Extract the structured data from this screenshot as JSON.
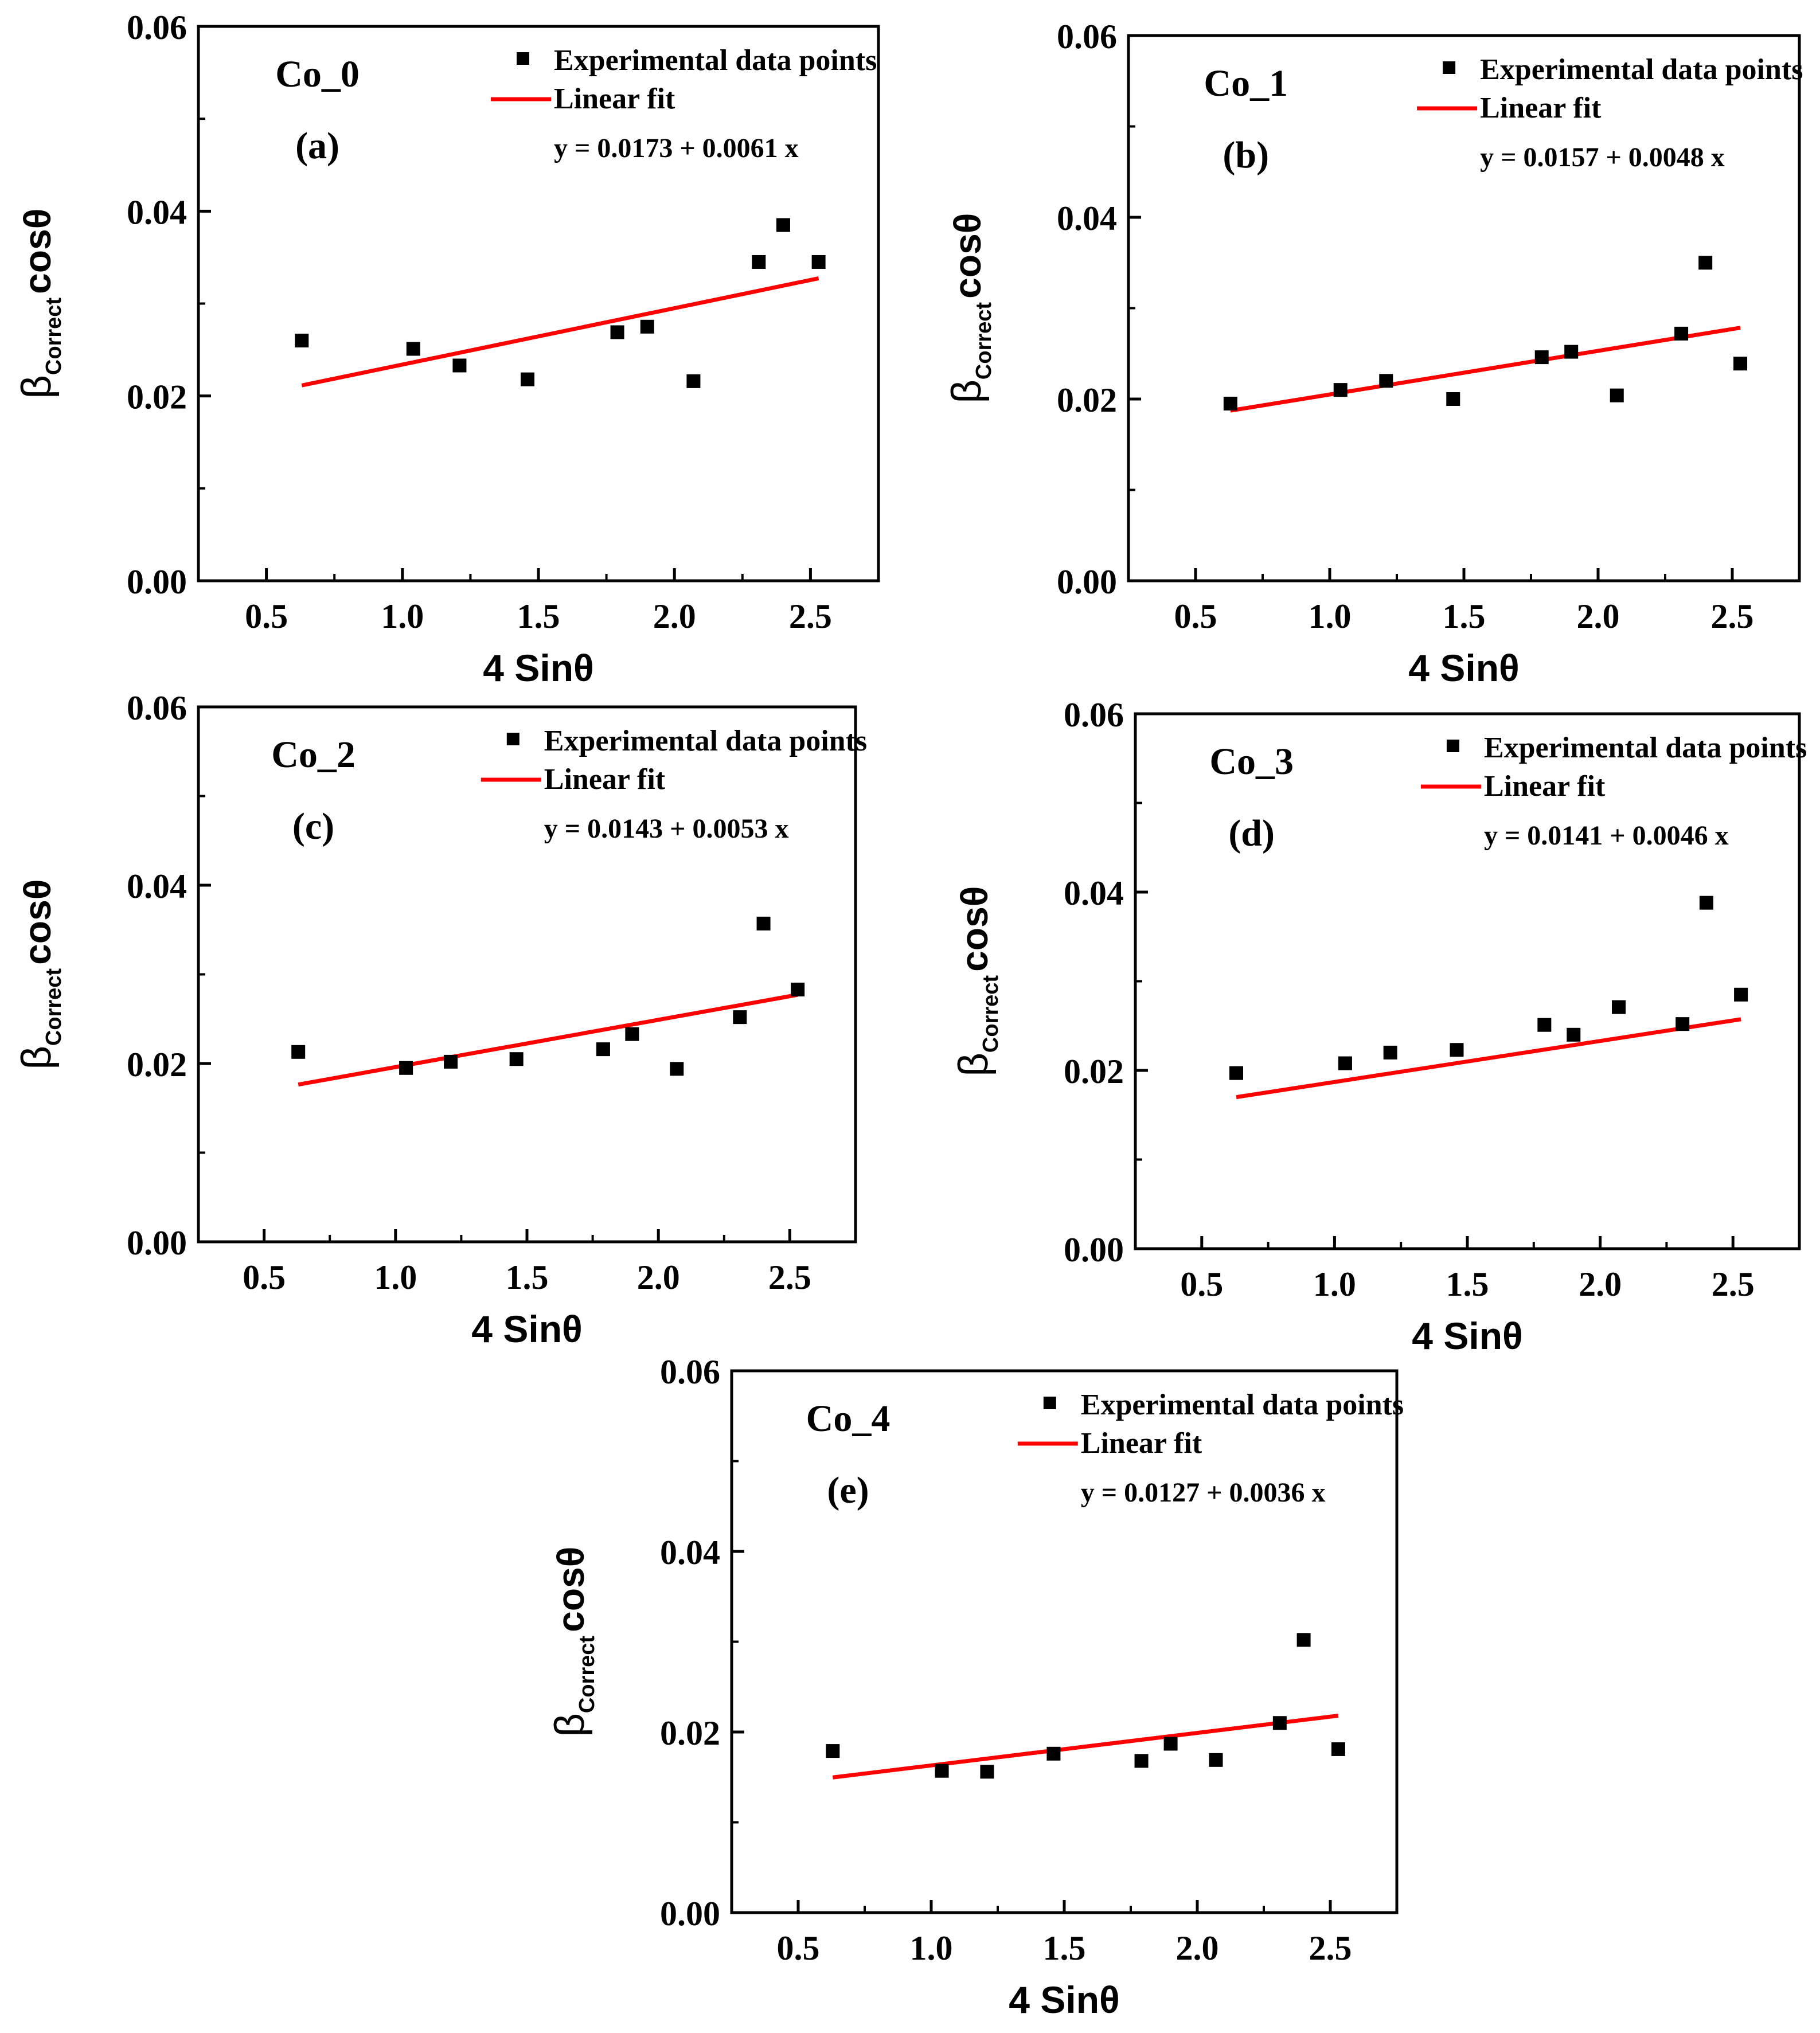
{
  "figure": {
    "x_axis_label": "4 Sinθ",
    "y_axis_label": {
      "beta": "β",
      "subscript": "Correct",
      "suffix": "cosθ"
    },
    "legend": {
      "points_label": "Experimental data points",
      "fit_label": "Linear fit"
    }
  },
  "colors": {
    "points": "#000000",
    "fit_line": "#ff0000",
    "axes": "#000000"
  },
  "chart_data": [
    {
      "type": "scatter",
      "sample": "Co_0",
      "panel": "(a)",
      "equation": "y = 0.0173 + 0.0061 x",
      "x_ticks": [
        "0.5",
        "1.0",
        "1.5",
        "2.0",
        "2.5"
      ],
      "y_ticks": [
        "0.00",
        "0.02",
        "0.04",
        "0.06"
      ],
      "xlim": [
        0.25,
        2.75
      ],
      "ylim": [
        0,
        0.06
      ],
      "points": [
        [
          0.63,
          0.026
        ],
        [
          1.04,
          0.0251
        ],
        [
          1.21,
          0.0233
        ],
        [
          1.46,
          0.0218
        ],
        [
          1.79,
          0.0269
        ],
        [
          1.9,
          0.0275
        ],
        [
          2.07,
          0.0216
        ],
        [
          2.31,
          0.0345
        ],
        [
          2.4,
          0.0385
        ],
        [
          2.53,
          0.0345
        ]
      ],
      "fit": {
        "intercept": 0.0173,
        "slope": 0.0061,
        "x_range": [
          0.63,
          2.53
        ]
      }
    },
    {
      "type": "scatter",
      "sample": "Co_1",
      "panel": "(b)",
      "equation": "y = 0.0157 + 0.0048 x",
      "x_ticks": [
        "0.5",
        "1.0",
        "1.5",
        "2.0",
        "2.5"
      ],
      "y_ticks": [
        "0.00",
        "0.02",
        "0.04",
        "0.06"
      ],
      "xlim": [
        0.25,
        2.75
      ],
      "ylim": [
        0,
        0.06
      ],
      "points": [
        [
          0.63,
          0.0195
        ],
        [
          1.04,
          0.021
        ],
        [
          1.21,
          0.022
        ],
        [
          1.46,
          0.02
        ],
        [
          1.79,
          0.0246
        ],
        [
          1.9,
          0.0252
        ],
        [
          2.07,
          0.0204
        ],
        [
          2.31,
          0.0272
        ],
        [
          2.4,
          0.035
        ],
        [
          2.53,
          0.0239
        ]
      ],
      "fit": {
        "intercept": 0.0157,
        "slope": 0.0048,
        "x_range": [
          0.63,
          2.53
        ]
      }
    },
    {
      "type": "scatter",
      "sample": "Co_2",
      "panel": "(c)",
      "equation": "y = 0.0143 + 0.0053 x",
      "x_ticks": [
        "0.5",
        "1.0",
        "1.5",
        "2.0",
        "2.5"
      ],
      "y_ticks": [
        "0.00",
        "0.02",
        "0.04",
        "0.06"
      ],
      "xlim": [
        0.25,
        2.75
      ],
      "ylim": [
        0,
        0.06
      ],
      "points": [
        [
          0.63,
          0.0213
        ],
        [
          1.04,
          0.0195
        ],
        [
          1.21,
          0.0202
        ],
        [
          1.46,
          0.0205
        ],
        [
          1.79,
          0.0216
        ],
        [
          1.9,
          0.0233
        ],
        [
          2.07,
          0.0194
        ],
        [
          2.31,
          0.0252
        ],
        [
          2.4,
          0.0357
        ],
        [
          2.53,
          0.0283
        ]
      ],
      "fit": {
        "intercept": 0.0143,
        "slope": 0.0053,
        "x_range": [
          0.63,
          2.53
        ]
      }
    },
    {
      "type": "scatter",
      "sample": "Co_3",
      "panel": "(d)",
      "equation": "y = 0.0141 + 0.0046 x",
      "x_ticks": [
        "0.5",
        "1.0",
        "1.5",
        "2.0",
        "2.5"
      ],
      "y_ticks": [
        "0.00",
        "0.02",
        "0.04",
        "0.06"
      ],
      "xlim": [
        0.25,
        2.75
      ],
      "ylim": [
        0,
        0.06
      ],
      "points": [
        [
          0.63,
          0.0197
        ],
        [
          1.04,
          0.0208
        ],
        [
          1.21,
          0.022
        ],
        [
          1.46,
          0.0223
        ],
        [
          1.79,
          0.0251
        ],
        [
          1.9,
          0.024
        ],
        [
          2.07,
          0.0271
        ],
        [
          2.31,
          0.0252
        ],
        [
          2.4,
          0.0388
        ],
        [
          2.53,
          0.0285
        ]
      ],
      "fit": {
        "intercept": 0.0141,
        "slope": 0.0046,
        "x_range": [
          0.63,
          2.53
        ]
      }
    },
    {
      "type": "scatter",
      "sample": "Co_4",
      "panel": "(e)",
      "equation": "y = 0.0127 + 0.0036 x",
      "x_ticks": [
        "0.5",
        "1.0",
        "1.5",
        "2.0",
        "2.5"
      ],
      "y_ticks": [
        "0.00",
        "0.02",
        "0.04",
        "0.06"
      ],
      "xlim": [
        0.25,
        2.75
      ],
      "ylim": [
        0,
        0.06
      ],
      "points": [
        [
          0.63,
          0.0179
        ],
        [
          1.04,
          0.0157
        ],
        [
          1.21,
          0.0156
        ],
        [
          1.46,
          0.0176
        ],
        [
          1.79,
          0.0168
        ],
        [
          1.9,
          0.0187
        ],
        [
          2.07,
          0.0169
        ],
        [
          2.31,
          0.021
        ],
        [
          2.4,
          0.0302
        ],
        [
          2.53,
          0.0181
        ]
      ],
      "fit": {
        "intercept": 0.0127,
        "slope": 0.0036,
        "x_range": [
          0.63,
          2.53
        ]
      }
    }
  ]
}
